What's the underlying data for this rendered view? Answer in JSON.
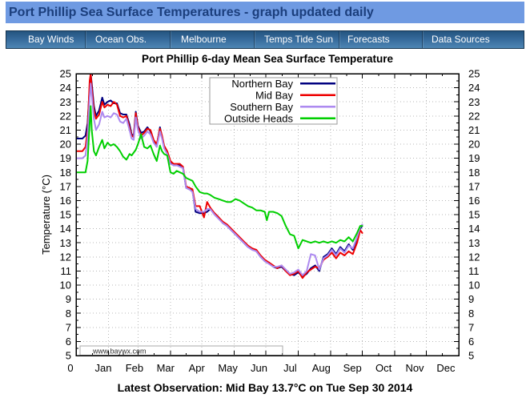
{
  "masthead": {
    "title": "Port Phillip Sea Surface Temperatures - graph updated daily",
    "bg_color": "#6f9ae2",
    "text_color": "#1b3e7c"
  },
  "nav": {
    "items": [
      {
        "label": "Bay Winds"
      },
      {
        "label": "Ocean Obs."
      },
      {
        "label": "Melbourne"
      },
      {
        "label": "Temps Tide Sun"
      },
      {
        "label": "Forecasts"
      },
      {
        "label": "Data Sources"
      }
    ]
  },
  "chart_data": {
    "type": "line",
    "title": "Port Phillip 6-day Mean Sea Surface Temperature",
    "ylabel": "Temperature (°C)",
    "ylim": [
      5,
      25
    ],
    "y_tick_step": 1,
    "x_unit": "day of year",
    "xlim_days": [
      0,
      365
    ],
    "x_origin_label": "0",
    "x_month_labels": [
      "Jan",
      "Feb",
      "Mar",
      "Apr",
      "May",
      "Jun",
      "Jul",
      "Aug",
      "Sep",
      "Oct",
      "Nov",
      "Dec"
    ],
    "grid": true,
    "legend_position": "top-center-inside",
    "watermark": "www.baywx.com",
    "x_days": [
      0,
      6,
      9,
      11,
      13,
      14,
      15,
      17,
      19,
      22,
      25,
      27,
      30,
      33,
      36,
      39,
      42,
      45,
      48,
      51,
      53,
      55,
      57,
      59,
      62,
      65,
      68,
      71,
      74,
      77,
      80,
      82,
      84,
      87,
      90,
      93,
      96,
      99,
      102,
      105,
      108,
      111,
      114,
      118,
      122,
      125,
      128,
      132,
      136,
      140,
      144,
      148,
      152,
      156,
      160,
      164,
      168,
      172,
      176,
      180,
      182,
      184,
      188,
      192,
      196,
      200,
      204,
      208,
      212,
      216,
      220,
      224,
      228,
      232,
      236,
      240,
      244,
      248,
      252,
      256,
      260,
      264,
      268,
      271,
      273
    ],
    "series": [
      {
        "name": "Northern Bay",
        "color": "#000080",
        "values": [
          20.4,
          20.4,
          20.6,
          21.5,
          24.0,
          25.0,
          24.3,
          22.7,
          22.0,
          22.4,
          23.3,
          22.8,
          23.0,
          23.1,
          22.9,
          22.9,
          22.2,
          22.1,
          22.1,
          21.4,
          20.7,
          20.6,
          22.3,
          21.3,
          20.8,
          20.9,
          21.2,
          20.9,
          20.2,
          19.9,
          21.2,
          20.5,
          19.8,
          19.4,
          18.7,
          18.5,
          18.5,
          18.5,
          18.3,
          16.9,
          16.8,
          16.7,
          15.2,
          15.1,
          15.1,
          15.2,
          15.4,
          15.1,
          14.8,
          14.4,
          14.2,
          13.9,
          13.6,
          13.3,
          13.0,
          12.7,
          12.6,
          12.4,
          12.0,
          11.7,
          11.6,
          11.6,
          11.3,
          11.2,
          11.3,
          11.0,
          10.8,
          10.7,
          10.9,
          10.6,
          10.8,
          11.2,
          11.4,
          11.0,
          12.0,
          12.2,
          12.6,
          12.2,
          12.7,
          12.4,
          12.9,
          12.5,
          13.3,
          14.0,
          14.2
        ]
      },
      {
        "name": "Mid Bay",
        "color": "#ee0000",
        "values": [
          19.5,
          19.5,
          19.8,
          21.0,
          24.5,
          25.0,
          24.0,
          22.4,
          21.8,
          22.1,
          23.0,
          22.6,
          22.8,
          22.7,
          23.0,
          22.8,
          22.0,
          21.9,
          22.0,
          21.2,
          20.6,
          20.5,
          22.2,
          21.2,
          20.6,
          20.8,
          21.1,
          21.0,
          20.3,
          20.0,
          21.1,
          20.6,
          19.9,
          19.5,
          18.8,
          18.6,
          18.6,
          18.6,
          18.4,
          17.0,
          16.9,
          16.8,
          15.6,
          15.6,
          14.8,
          15.9,
          15.5,
          15.1,
          14.8,
          14.5,
          14.3,
          14.0,
          13.7,
          13.4,
          13.1,
          12.8,
          12.6,
          12.5,
          12.1,
          11.8,
          11.7,
          11.6,
          11.4,
          11.2,
          11.4,
          11.0,
          10.7,
          10.8,
          11.0,
          10.5,
          10.9,
          11.1,
          11.3,
          11.2,
          11.8,
          12.0,
          12.3,
          11.9,
          12.3,
          12.1,
          12.4,
          12.2,
          13.0,
          13.9,
          13.7
        ]
      },
      {
        "name": "Southern Bay",
        "color": "#ad8af0",
        "values": [
          19.0,
          19.0,
          19.2,
          20.5,
          23.3,
          24.3,
          23.5,
          21.8,
          21.0,
          21.4,
          22.3,
          21.9,
          22.0,
          21.9,
          22.2,
          22.1,
          21.6,
          21.5,
          21.8,
          21.0,
          20.4,
          20.3,
          21.9,
          21.0,
          20.4,
          20.6,
          20.9,
          20.7,
          20.1,
          19.8,
          20.9,
          20.4,
          19.7,
          19.3,
          18.6,
          18.5,
          18.5,
          18.4,
          18.3,
          16.9,
          16.8,
          16.6,
          15.4,
          15.2,
          15.2,
          15.4,
          15.4,
          15.0,
          14.7,
          14.4,
          14.2,
          13.9,
          13.6,
          13.3,
          13.0,
          12.7,
          12.5,
          12.4,
          12.0,
          11.7,
          11.6,
          11.5,
          11.3,
          11.3,
          11.4,
          11.1,
          10.8,
          10.9,
          11.1,
          10.7,
          11.0,
          12.2,
          12.1,
          11.1,
          11.9,
          12.1,
          12.5,
          12.1,
          12.6,
          12.3,
          12.8,
          12.6,
          13.4,
          14.1,
          14.3
        ]
      },
      {
        "name": "Outside Heads",
        "color": "#00cf00",
        "values": [
          18.0,
          18.0,
          18.0,
          18.8,
          21.5,
          22.7,
          21.0,
          19.5,
          19.2,
          19.8,
          20.3,
          19.7,
          20.1,
          19.9,
          20.0,
          19.8,
          19.5,
          19.1,
          18.9,
          19.3,
          19.2,
          19.4,
          19.6,
          20.0,
          20.7,
          19.8,
          19.7,
          19.9,
          19.3,
          18.8,
          19.9,
          19.5,
          19.3,
          19.2,
          18.0,
          17.9,
          18.1,
          18.0,
          17.9,
          17.6,
          17.5,
          17.4,
          17.0,
          16.6,
          16.5,
          16.5,
          16.4,
          16.2,
          16.1,
          16.0,
          15.9,
          15.9,
          16.1,
          16.0,
          15.8,
          15.6,
          15.5,
          15.3,
          15.3,
          15.2,
          14.6,
          15.2,
          15.2,
          15.1,
          14.9,
          14.2,
          13.6,
          13.5,
          12.6,
          13.2,
          13.1,
          13.0,
          13.1,
          13.0,
          13.1,
          13.0,
          13.1,
          13.0,
          13.2,
          13.1,
          13.4,
          13.1,
          13.7,
          14.2,
          14.2
        ]
      }
    ]
  },
  "footer": {
    "latest_observation": "Latest Observation: Mid Bay 13.7°C on Tue Sep 30 2014"
  }
}
